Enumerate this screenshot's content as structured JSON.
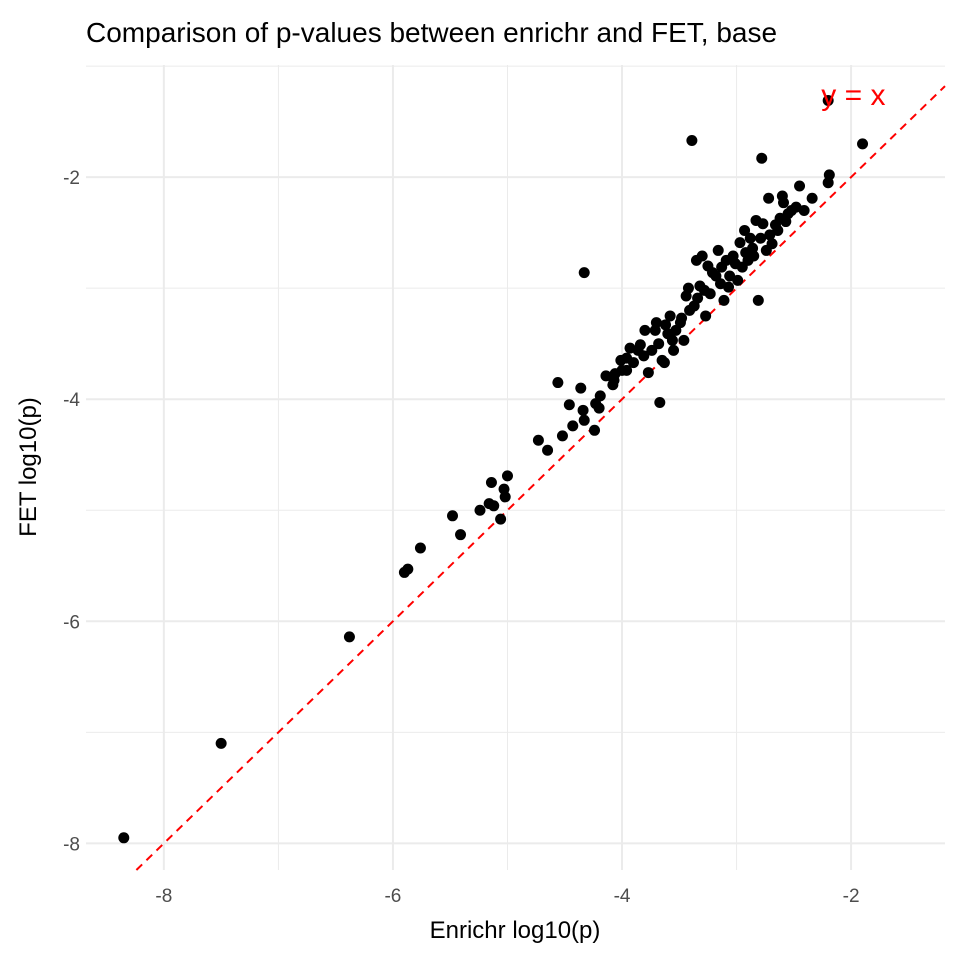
{
  "chart_data": {
    "type": "scatter",
    "title": "Comparison of p-values between enrichr and FET, base",
    "xlabel": "Enrichr log10(p)",
    "ylabel": "FET log10(p)",
    "xlim": [
      -8.68,
      -1.18
    ],
    "ylim": [
      -8.24,
      -0.99
    ],
    "xticks": [
      -8,
      -6,
      -4,
      -2
    ],
    "yticks": [
      -2,
      -4,
      -6,
      -8
    ],
    "grid": true,
    "reference_line": {
      "label": "y = x",
      "slope": 1,
      "intercept": 0,
      "color": "#ff0000",
      "style": "dashed"
    },
    "point_color": "#000000",
    "points": [
      [
        -8.35,
        -7.95
      ],
      [
        -7.5,
        -7.1
      ],
      [
        -6.38,
        -6.14
      ],
      [
        -5.9,
        -5.56
      ],
      [
        -5.87,
        -5.53
      ],
      [
        -5.76,
        -5.34
      ],
      [
        -5.48,
        -5.05
      ],
      [
        -5.41,
        -5.22
      ],
      [
        -5.24,
        -5.0
      ],
      [
        -5.16,
        -4.94
      ],
      [
        -5.14,
        -4.75
      ],
      [
        -5.12,
        -4.96
      ],
      [
        -5.06,
        -5.08
      ],
      [
        -5.03,
        -4.81
      ],
      [
        -5.02,
        -4.88
      ],
      [
        -5.0,
        -4.69
      ],
      [
        -4.73,
        -4.37
      ],
      [
        -4.65,
        -4.46
      ],
      [
        -4.56,
        -3.85
      ],
      [
        -4.52,
        -4.33
      ],
      [
        -4.46,
        -4.05
      ],
      [
        -4.43,
        -4.24
      ],
      [
        -4.36,
        -3.9
      ],
      [
        -4.34,
        -4.1
      ],
      [
        -4.33,
        -4.19
      ],
      [
        -4.33,
        -2.86
      ],
      [
        -4.24,
        -4.28
      ],
      [
        -4.23,
        -4.04
      ],
      [
        -4.2,
        -4.08
      ],
      [
        -4.19,
        -3.97
      ],
      [
        -4.14,
        -3.79
      ],
      [
        -4.08,
        -3.87
      ],
      [
        -4.07,
        -3.83
      ],
      [
        -4.06,
        -3.77
      ],
      [
        -4.01,
        -3.65
      ],
      [
        -4.0,
        -3.74
      ],
      [
        -3.96,
        -3.74
      ],
      [
        -3.96,
        -3.63
      ],
      [
        -3.93,
        -3.54
      ],
      [
        -3.9,
        -3.67
      ],
      [
        -3.86,
        -3.56
      ],
      [
        -3.84,
        -3.51
      ],
      [
        -3.81,
        -3.61
      ],
      [
        -3.8,
        -3.38
      ],
      [
        -3.77,
        -3.76
      ],
      [
        -3.74,
        -3.56
      ],
      [
        -3.71,
        -3.38
      ],
      [
        -3.7,
        -3.31
      ],
      [
        -3.68,
        -3.5
      ],
      [
        -3.67,
        -4.03
      ],
      [
        -3.65,
        -3.65
      ],
      [
        -3.63,
        -3.67
      ],
      [
        -3.62,
        -3.33
      ],
      [
        -3.6,
        -3.41
      ],
      [
        -3.58,
        -3.25
      ],
      [
        -3.56,
        -3.47
      ],
      [
        -3.55,
        -3.56
      ],
      [
        -3.53,
        -3.38
      ],
      [
        -3.49,
        -3.31
      ],
      [
        -3.48,
        -3.27
      ],
      [
        -3.46,
        -3.47
      ],
      [
        -3.44,
        -3.07
      ],
      [
        -3.42,
        -3.0
      ],
      [
        -3.41,
        -3.2
      ],
      [
        -3.39,
        -1.67
      ],
      [
        -3.37,
        -3.16
      ],
      [
        -3.35,
        -2.75
      ],
      [
        -3.34,
        -3.09
      ],
      [
        -3.32,
        -2.98
      ],
      [
        -3.3,
        -2.71
      ],
      [
        -3.28,
        -3.02
      ],
      [
        -3.27,
        -3.25
      ],
      [
        -3.25,
        -2.8
      ],
      [
        -3.23,
        -3.05
      ],
      [
        -3.21,
        -2.86
      ],
      [
        -3.18,
        -2.89
      ],
      [
        -3.16,
        -2.66
      ],
      [
        -3.14,
        -2.96
      ],
      [
        -3.13,
        -2.81
      ],
      [
        -3.11,
        -3.11
      ],
      [
        -3.09,
        -2.75
      ],
      [
        -3.07,
        -2.99
      ],
      [
        -3.06,
        -2.89
      ],
      [
        -3.03,
        -2.71
      ],
      [
        -3.01,
        -2.78
      ],
      [
        -2.99,
        -2.93
      ],
      [
        -2.97,
        -2.59
      ],
      [
        -2.95,
        -2.81
      ],
      [
        -2.93,
        -2.48
      ],
      [
        -2.92,
        -2.68
      ],
      [
        -2.9,
        -2.75
      ],
      [
        -2.88,
        -2.55
      ],
      [
        -2.86,
        -2.64
      ],
      [
        -2.85,
        -2.71
      ],
      [
        -2.83,
        -2.39
      ],
      [
        -2.81,
        -3.11
      ],
      [
        -2.79,
        -2.55
      ],
      [
        -2.78,
        -1.83
      ],
      [
        -2.77,
        -2.42
      ],
      [
        -2.74,
        -2.66
      ],
      [
        -2.72,
        -2.19
      ],
      [
        -2.71,
        -2.52
      ],
      [
        -2.69,
        -2.6
      ],
      [
        -2.66,
        -2.43
      ],
      [
        -2.64,
        -2.48
      ],
      [
        -2.62,
        -2.37
      ],
      [
        -2.6,
        -2.17
      ],
      [
        -2.59,
        -2.23
      ],
      [
        -2.57,
        -2.4
      ],
      [
        -2.55,
        -2.33
      ],
      [
        -2.52,
        -2.3
      ],
      [
        -2.48,
        -2.27
      ],
      [
        -2.45,
        -2.08
      ],
      [
        -2.41,
        -2.3
      ],
      [
        -2.34,
        -2.19
      ],
      [
        -2.2,
        -2.05
      ],
      [
        -2.19,
        -1.98
      ],
      [
        -2.2,
        -1.31
      ],
      [
        -1.9,
        -1.7
      ]
    ]
  }
}
